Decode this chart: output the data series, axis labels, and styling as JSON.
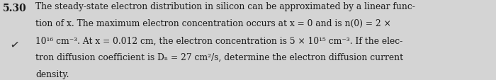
{
  "problem_number": "5.30",
  "background_color": "#d4d4d4",
  "text_color": "#1a1a1a",
  "font_size": 8.8,
  "problem_font_size": 10.0,
  "line1": "The steady-state electron distribution in silicon can be approximated by a linear func-",
  "line2": "tion of x. The maximum electron concentration occurs at x = 0 and is n(0) = 2 ×",
  "line3": "10¹⁶ cm⁻³. At x = 0.012 cm, the electron concentration is 5 × 10¹⁵ cm⁻³. If the elec-",
  "line4": "tron diffusion coefficient is Dₙ = 27 cm²/s, determine the electron diffusion current",
  "line5": "density."
}
